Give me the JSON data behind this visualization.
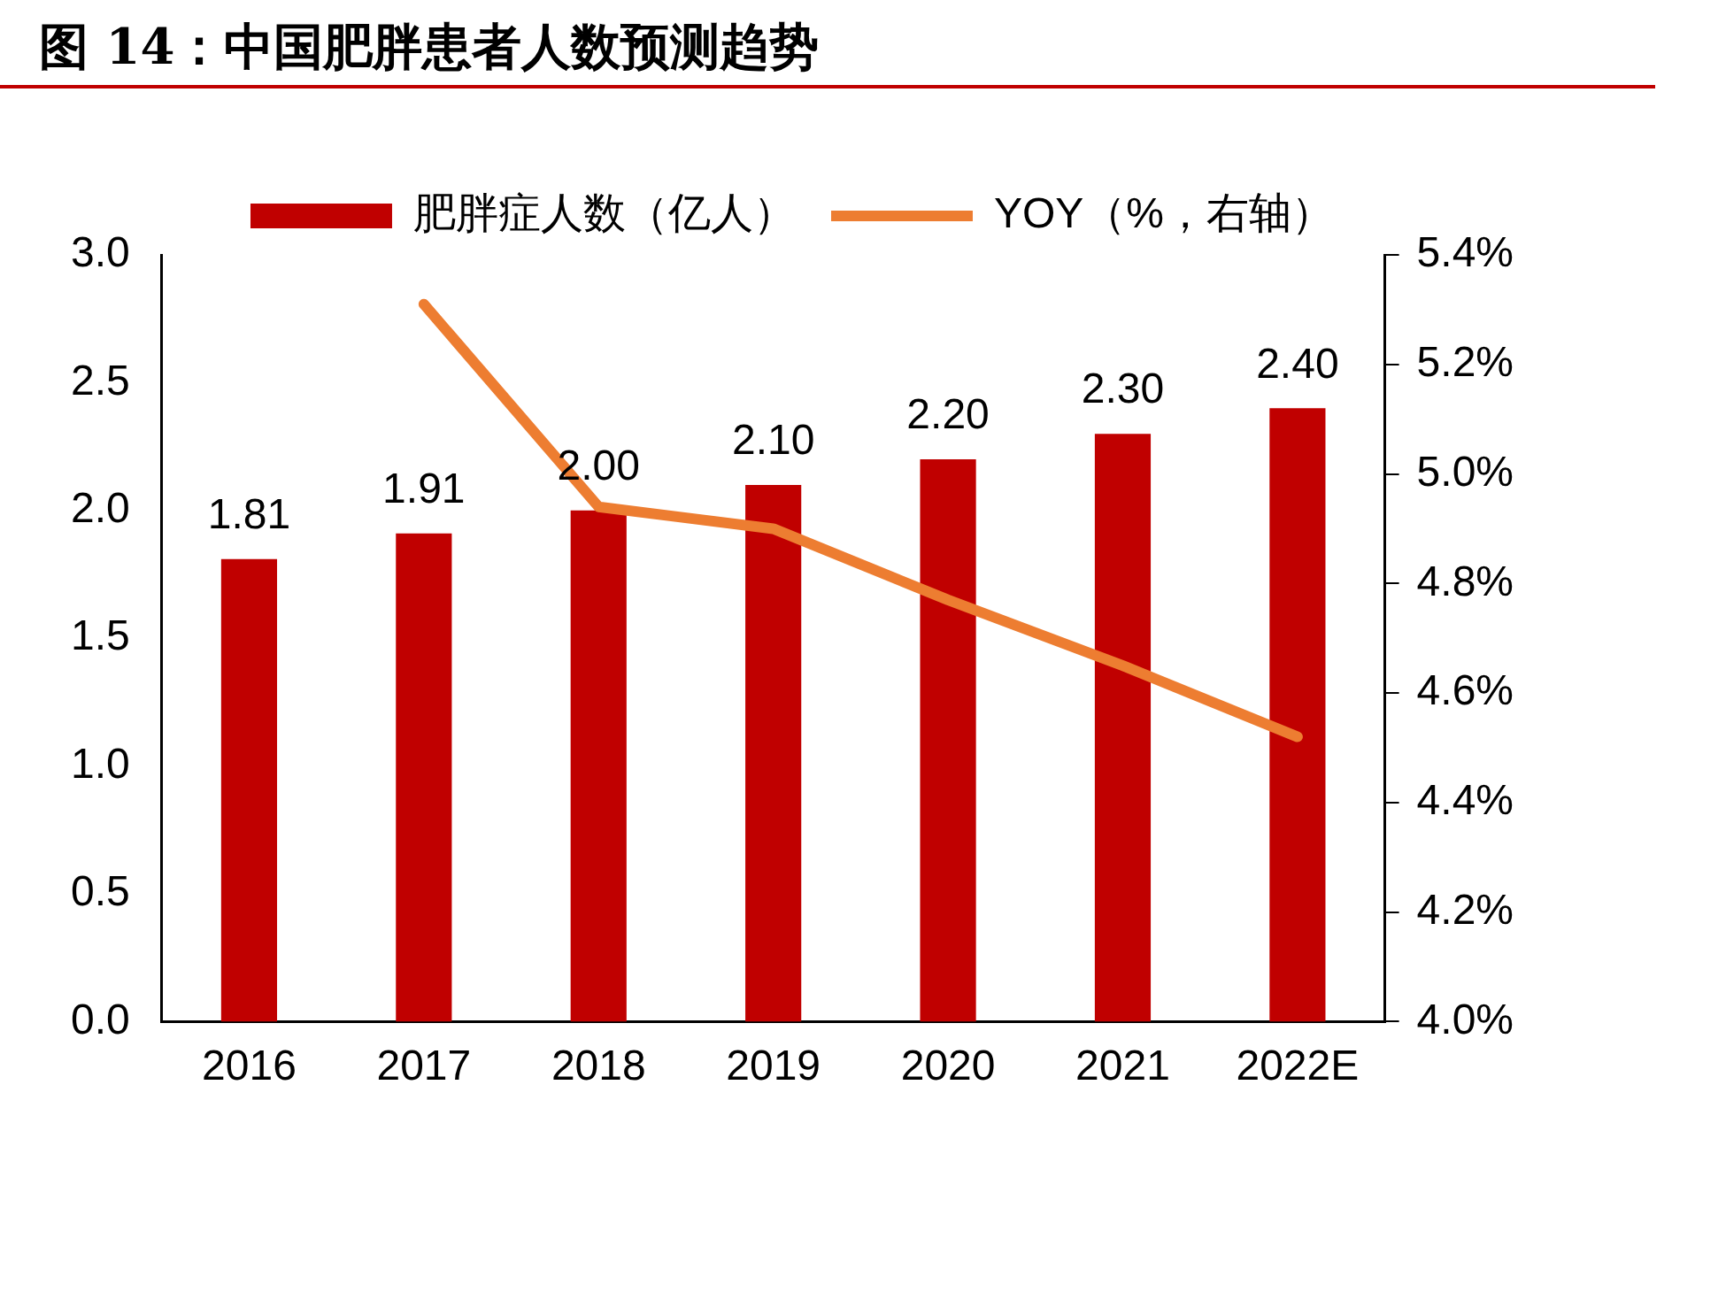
{
  "chart_data": {
    "type": "bar",
    "title": "图 14：中国肥胖患者人数预测趋势",
    "categories": [
      "2016",
      "2017",
      "2018",
      "2019",
      "2020",
      "2021",
      "2022E"
    ],
    "series": [
      {
        "name": "肥胖症人数（亿人）",
        "color": "#c00000",
        "values": [
          1.81,
          1.91,
          2.0,
          2.1,
          2.2,
          2.3,
          2.4
        ],
        "value_labels": [
          "1.81",
          "1.91",
          "2.00",
          "2.10",
          "2.20",
          "2.30",
          "2.40"
        ]
      },
      {
        "name": "YOY（%，右轴）",
        "type": "line",
        "axis": "y2",
        "color": "#ed7d31",
        "values": [
          null,
          5.31,
          4.94,
          4.9,
          4.77,
          4.65,
          4.52
        ]
      }
    ],
    "ylim": [
      0,
      3
    ],
    "yticks": [
      {
        "value": 0,
        "label": "0.0"
      },
      {
        "value": 0.5,
        "label": "0.5"
      },
      {
        "value": 1,
        "label": "1.0"
      },
      {
        "value": 1.5,
        "label": "1.5"
      },
      {
        "value": 2,
        "label": "2.0"
      },
      {
        "value": 2.5,
        "label": "2.5"
      },
      {
        "value": 3,
        "label": "3.0"
      }
    ],
    "y2lim": [
      4.0,
      5.4
    ],
    "y2ticks": [
      {
        "value": 4.0,
        "label": "4.0%"
      },
      {
        "value": 4.2,
        "label": "4.2%"
      },
      {
        "value": 4.4,
        "label": "4.4%"
      },
      {
        "value": 4.6,
        "label": "4.6%"
      },
      {
        "value": 4.8,
        "label": "4.8%"
      },
      {
        "value": 5.0,
        "label": "5.0%"
      },
      {
        "value": 5.2,
        "label": "5.2%"
      },
      {
        "value": 5.4,
        "label": "5.4%"
      }
    ],
    "grid": false,
    "legend": "top",
    "marker": "none"
  }
}
